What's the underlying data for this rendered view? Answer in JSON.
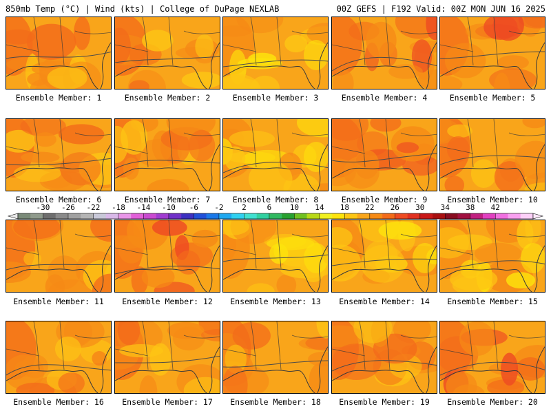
{
  "header": {
    "left": "850mb Temp (°C) | Wind (kts) | College of DuPage NEXLAB",
    "right": "00Z GEFS | F192 Valid: 00Z MON JUN 16 2025"
  },
  "colors": {
    "base": "#f9a51a",
    "warm": "#f68a16",
    "hot": "#f36b1a",
    "hotter": "#ee4b22",
    "cool": "#fdc514",
    "cooler": "#fde30c",
    "coast": "#3a3a3a"
  },
  "members": [
    {
      "label": "Ensemble Member: 1",
      "tone": 1
    },
    {
      "label": "Ensemble Member: 2",
      "tone": 1
    },
    {
      "label": "Ensemble Member: 3",
      "tone": 0
    },
    {
      "label": "Ensemble Member: 4",
      "tone": 2
    },
    {
      "label": "Ensemble Member: 5",
      "tone": 2
    },
    {
      "label": "Ensemble Member: 6",
      "tone": 1
    },
    {
      "label": "Ensemble Member: 7",
      "tone": 1
    },
    {
      "label": "Ensemble Member: 8",
      "tone": 0
    },
    {
      "label": "Ensemble Member: 9",
      "tone": 2
    },
    {
      "label": "Ensemble Member: 10",
      "tone": 1
    },
    {
      "label": "Ensemble Member: 11",
      "tone": 1
    },
    {
      "label": "Ensemble Member: 12",
      "tone": 2
    },
    {
      "label": "Ensemble Member: 13",
      "tone": 0
    },
    {
      "label": "Ensemble Member: 14",
      "tone": 0
    },
    {
      "label": "Ensemble Member: 15",
      "tone": 0
    },
    {
      "label": "Ensemble Member: 16",
      "tone": 1
    },
    {
      "label": "Ensemble Member: 17",
      "tone": 1
    },
    {
      "label": "Ensemble Member: 18",
      "tone": 1
    },
    {
      "label": "Ensemble Member: 19",
      "tone": 1
    },
    {
      "label": "Ensemble Member: 20",
      "tone": 2
    }
  ],
  "colorbar": {
    "ticks": [
      "-30",
      "-26",
      "-22",
      "-18",
      "-14",
      "-10",
      "-6",
      "-2",
      "2",
      "6",
      "10",
      "14",
      "18",
      "22",
      "26",
      "30",
      "34",
      "38",
      "42"
    ],
    "colors": [
      "#7a8a78",
      "#8f9a8c",
      "#6e6e6e",
      "#8a8a8a",
      "#a0a0a0",
      "#b4b4b4",
      "#c8c8d8",
      "#d8b8e8",
      "#e896e8",
      "#e060d8",
      "#c84ad0",
      "#a03cd0",
      "#7030c8",
      "#3c30c0",
      "#2050d8",
      "#1a78e8",
      "#20a8f0",
      "#30d0f0",
      "#40e0d0",
      "#30d0a0",
      "#30b860",
      "#28a030",
      "#70c020",
      "#b8d818",
      "#f0f020",
      "#fde30c",
      "#fdc514",
      "#f9a51a",
      "#f68a16",
      "#f36b1a",
      "#ee4b22",
      "#e03020",
      "#c81818",
      "#a81010",
      "#880c20",
      "#a01040",
      "#c02080",
      "#e040c0",
      "#f070e0",
      "#f8a0f0",
      "#fcd0f8"
    ]
  }
}
